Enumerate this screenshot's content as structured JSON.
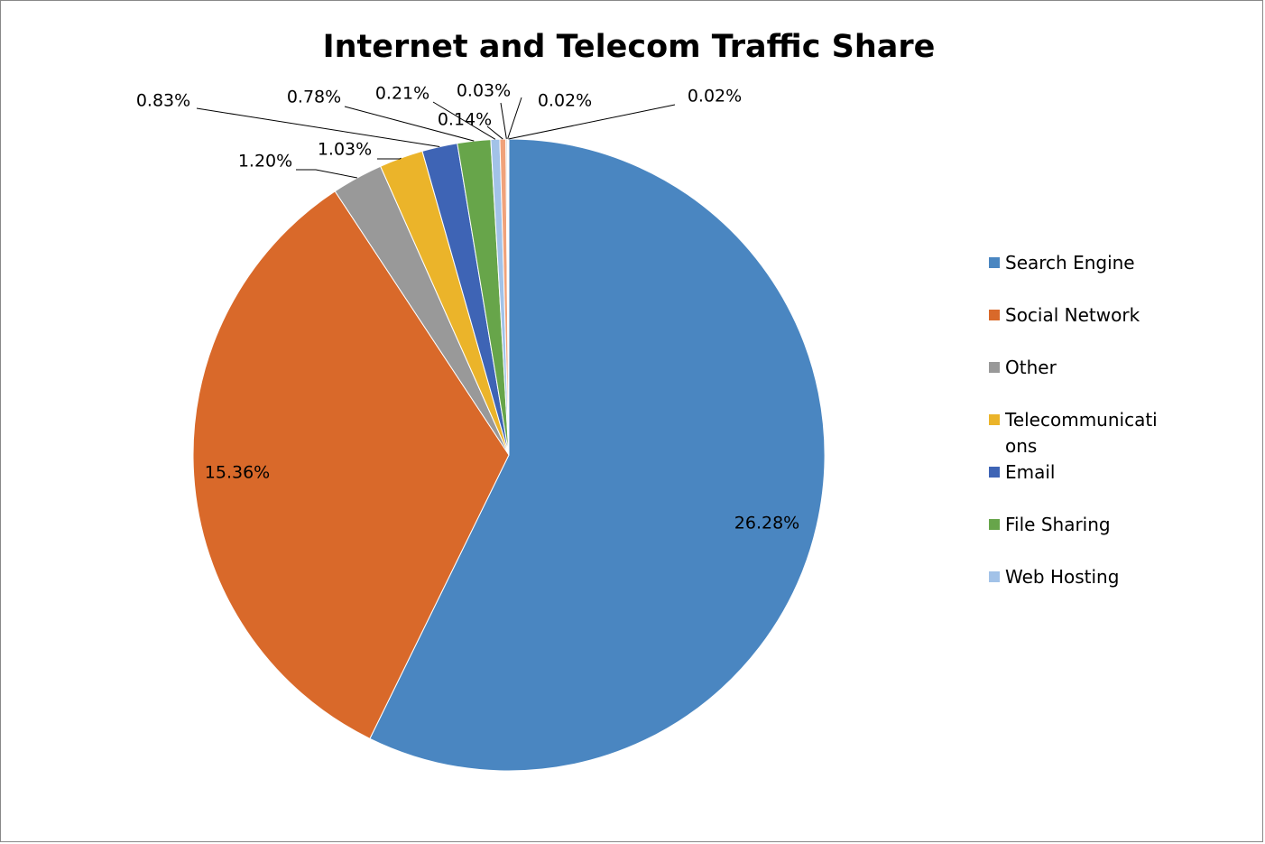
{
  "chart_data": {
    "type": "pie",
    "title": "Internet and Telecom Traffic Share",
    "categories": [
      "Search Engine",
      "Social Network",
      "Other",
      "Telecommunications",
      "Email",
      "File Sharing",
      "Web Hosting",
      null,
      null,
      null,
      null
    ],
    "values": [
      26.28,
      15.36,
      1.2,
      1.03,
      0.83,
      0.78,
      0.21,
      0.14,
      0.03,
      0.02,
      0.02
    ],
    "value_labels": [
      "26.28%",
      "15.36%",
      "1.20%",
      "1.03%",
      "0.83%",
      "0.78%",
      "0.21%",
      "0.14%",
      "0.03%",
      "0.02%",
      "0.02%"
    ],
    "colors": [
      "#4a86c1",
      "#d9692a",
      "#999999",
      "#ebb42a",
      "#3e64b5",
      "#67a54a",
      "#a2c2e8",
      "#f0a27a",
      "#b5b5b5",
      "#f3c94c",
      "#7b96d0"
    ],
    "legend": "right"
  }
}
